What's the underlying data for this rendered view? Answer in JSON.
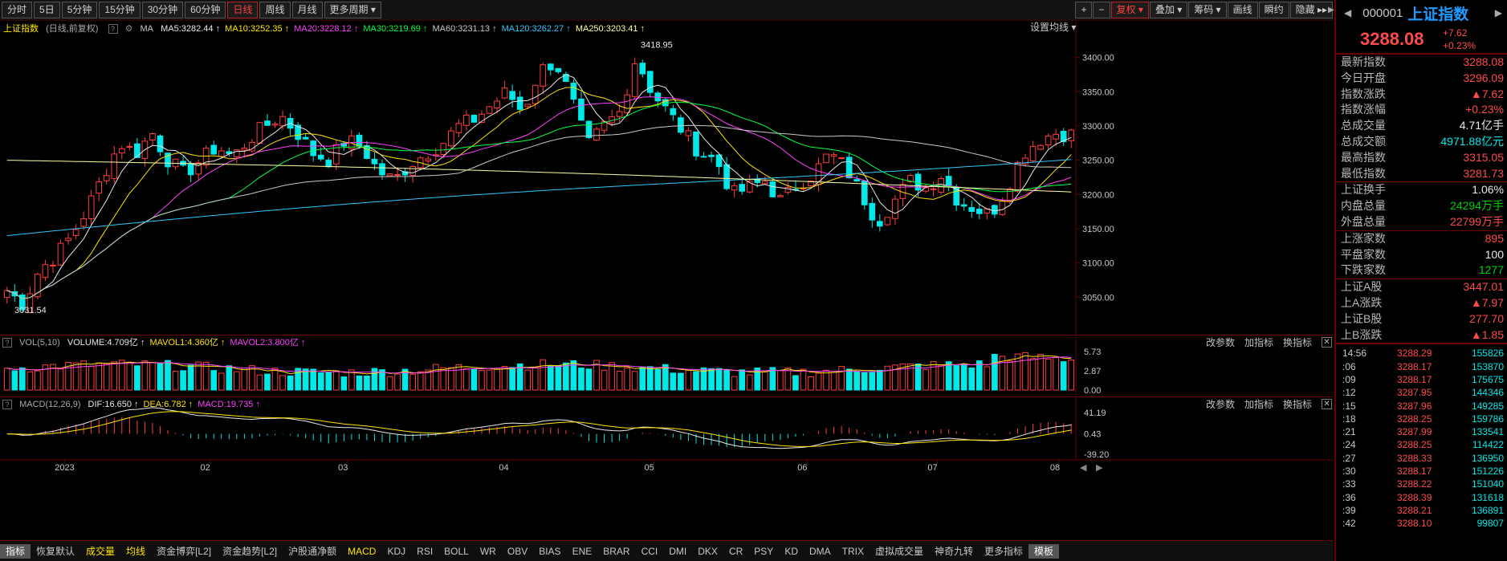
{
  "toolbar": {
    "periods": [
      "分时",
      "5日",
      "5分钟",
      "15分钟",
      "30分钟",
      "60分钟",
      "日线",
      "周线",
      "月线",
      "更多周期"
    ],
    "active_period": "日线",
    "right_buttons": [
      "+",
      "−",
      "复权",
      "叠加",
      "筹码",
      "画线",
      "瞬约",
      "隐藏"
    ]
  },
  "main_panel": {
    "title": "上证指数",
    "subtitle": "(日线,前复权)",
    "ma_label": "MA",
    "ma_values": [
      {
        "label": "MA5:3282.44",
        "color": "#e8e8e8"
      },
      {
        "label": "MA10:3252.35",
        "color": "#ffe400"
      },
      {
        "label": "MA20:3228.12",
        "color": "#ff40ff"
      },
      {
        "label": "MA30:3219.69",
        "color": "#00ff40"
      },
      {
        "label": "MA60:3231.13",
        "color": "#c8c8c8"
      },
      {
        "label": "MA120:3262.27",
        "color": "#30c8ff"
      },
      {
        "label": "MA250:3203.41",
        "color": "#ffffa0"
      }
    ],
    "settings_label": "设置均线",
    "high_label": "3418.95",
    "low_label": "3031.54"
  },
  "vol_panel": {
    "name": "VOL(5,10)",
    "values": [
      {
        "label": "VOLUME:4.709亿",
        "color": "#e8e8e8"
      },
      {
        "label": "MAVOL1:4.360亿",
        "color": "#ffe400"
      },
      {
        "label": "MAVOL2:3.800亿",
        "color": "#ff40ff"
      }
    ],
    "buttons": [
      "改参数",
      "加指标",
      "换指标"
    ]
  },
  "macd_panel": {
    "name": "MACD(12,26,9)",
    "values": [
      {
        "label": "DIF:16.650",
        "color": "#e8e8e8"
      },
      {
        "label": "DEA:6.782",
        "color": "#ffe400"
      },
      {
        "label": "MACD:19.735",
        "color": "#ff40ff"
      }
    ],
    "buttons": [
      "改参数",
      "加指标",
      "换指标"
    ]
  },
  "axes": {
    "price_ticks": [
      "3400.00",
      "3350.00",
      "3300.00",
      "3250.00",
      "3200.00",
      "3150.00",
      "3100.00",
      "3050.00"
    ],
    "vol_ticks": [
      "5.73",
      "2.87",
      "0.00"
    ],
    "macd_ticks": [
      "41.19",
      "0.43",
      "-39.20"
    ],
    "months": [
      "2023",
      "02",
      "03",
      "04",
      "05",
      "06",
      "07",
      "08"
    ]
  },
  "bottom_tabs": [
    "指标",
    "恢复默认",
    "成交量",
    "均线",
    "资金博弈[L2]",
    "资金趋势[L2]",
    "沪股通净额",
    "MACD",
    "KDJ",
    "RSI",
    "BOLL",
    "WR",
    "OBV",
    "BIAS",
    "ENE",
    "BRAR",
    "CCI",
    "DMI",
    "DKX",
    "CR",
    "PSY",
    "KD",
    "DMA",
    "TRIX",
    "虚拟成交量",
    "神奇九转",
    "更多指标",
    "模板"
  ],
  "side": {
    "code": "000001",
    "name": "上证指数",
    "price": "3288.08",
    "change": "+7.62",
    "change_pct": "+0.23%",
    "stats": [
      {
        "label": "最新指数",
        "value": "3288.08",
        "color": "r"
      },
      {
        "label": "今日开盘",
        "value": "3296.09",
        "color": "r"
      },
      {
        "label": "指数涨跌",
        "value": "▲7.62",
        "color": "r"
      },
      {
        "label": "指数涨幅",
        "value": "+0.23%",
        "color": "r"
      },
      {
        "label": "总成交量",
        "value": "4.71亿手",
        "color": "w"
      },
      {
        "label": "总成交额",
        "value": "4971.88亿元",
        "color": "c"
      },
      {
        "label": "最高指数",
        "value": "3315.05",
        "color": "r"
      },
      {
        "label": "最低指数",
        "value": "3281.73",
        "color": "r"
      }
    ],
    "stats2": [
      {
        "label": "上证换手",
        "value": "1.06%",
        "color": "w"
      },
      {
        "label": "内盘总量",
        "value": "24294万手",
        "color": "g"
      },
      {
        "label": "外盘总量",
        "value": "22799万手",
        "color": "r"
      }
    ],
    "stats3": [
      {
        "label": "上涨家数",
        "value": "895",
        "color": "r"
      },
      {
        "label": "平盘家数",
        "value": "100",
        "color": "w"
      },
      {
        "label": "下跌家数",
        "value": "1277",
        "color": "g"
      }
    ],
    "stats4": [
      {
        "label": "上证A股",
        "value": "3447.01",
        "color": "r"
      },
      {
        "label": "上A涨跌",
        "value": "▲7.97",
        "color": "r"
      },
      {
        "label": "上证B股",
        "value": "277.70",
        "color": "r"
      },
      {
        "label": "上B涨跌",
        "value": "▲1.85",
        "color": "r"
      }
    ],
    "ticks": [
      {
        "t": "14:56",
        "p": "3288.29",
        "v": "155826"
      },
      {
        "t": ":06",
        "p": "3288.17",
        "v": "153870"
      },
      {
        "t": ":09",
        "p": "3288.17",
        "v": "175675"
      },
      {
        "t": ":12",
        "p": "3287.95",
        "v": "144346"
      },
      {
        "t": ":15",
        "p": "3287.96",
        "v": "149285"
      },
      {
        "t": ":18",
        "p": "3288.25",
        "v": "159786"
      },
      {
        "t": ":21",
        "p": "3287.99",
        "v": "133541"
      },
      {
        "t": ":24",
        "p": "3288.25",
        "v": "114422"
      },
      {
        "t": ":27",
        "p": "3288.33",
        "v": "136950"
      },
      {
        "t": ":30",
        "p": "3288.17",
        "v": "151226"
      },
      {
        "t": ":33",
        "p": "3288.22",
        "v": "151040"
      },
      {
        "t": ":36",
        "p": "3288.39",
        "v": "131618"
      },
      {
        "t": ":39",
        "p": "3288.21",
        "v": "136891"
      },
      {
        "t": ":42",
        "p": "3288.10",
        "v": "99807"
      }
    ]
  },
  "chart_data": {
    "type": "candlestick",
    "price_range": [
      3020,
      3430
    ],
    "vol_range": [
      0,
      5.73
    ],
    "macd_range": [
      -39.2,
      41.19
    ],
    "candles_anchor_closes": [
      3060,
      3040,
      3090,
      3110,
      3140,
      3180,
      3230,
      3275,
      3260,
      3290,
      3250,
      3230,
      3250,
      3270,
      3255,
      3280,
      3300,
      3315,
      3290,
      3260,
      3250,
      3280,
      3270,
      3235,
      3220,
      3245,
      3260,
      3275,
      3300,
      3310,
      3330,
      3350,
      3320,
      3380,
      3395,
      3340,
      3270,
      3300,
      3320,
      3400,
      3350,
      3320,
      3290,
      3260,
      3250,
      3200,
      3210,
      3220,
      3190,
      3215,
      3230,
      3260,
      3240,
      3200,
      3160,
      3190,
      3220,
      3210,
      3230,
      3190,
      3180,
      3170,
      3210,
      3260,
      3280,
      3290,
      3288
    ]
  }
}
